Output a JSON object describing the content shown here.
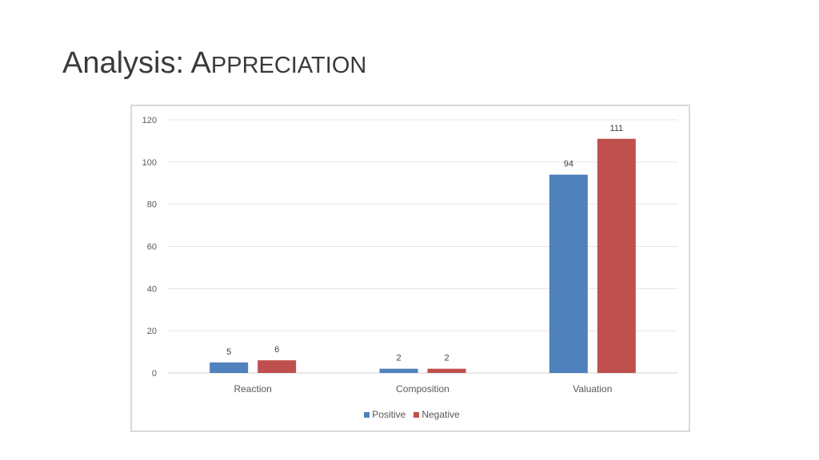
{
  "slide": {
    "title_main": "Analysis: ",
    "title_cap": "A",
    "title_rest": "PPRECIATION"
  },
  "colors": {
    "positive": "#4f81bd",
    "negative": "#c0504d",
    "grid": "#e4e4e4",
    "axis_text": "#595959"
  },
  "chart_data": {
    "type": "bar",
    "title": "",
    "xlabel": "",
    "ylabel": "",
    "categories": [
      "Reaction",
      "Composition",
      "Valuation"
    ],
    "series": [
      {
        "name": "Positive",
        "values": [
          5,
          2,
          94
        ]
      },
      {
        "name": "Negative",
        "values": [
          6,
          2,
          111
        ]
      }
    ],
    "ylim": [
      0,
      120
    ],
    "yticks": [
      "0",
      "20",
      "40",
      "60",
      "80",
      "100",
      "120"
    ],
    "grid": true,
    "legend_position": "bottom",
    "data_labels": true
  }
}
